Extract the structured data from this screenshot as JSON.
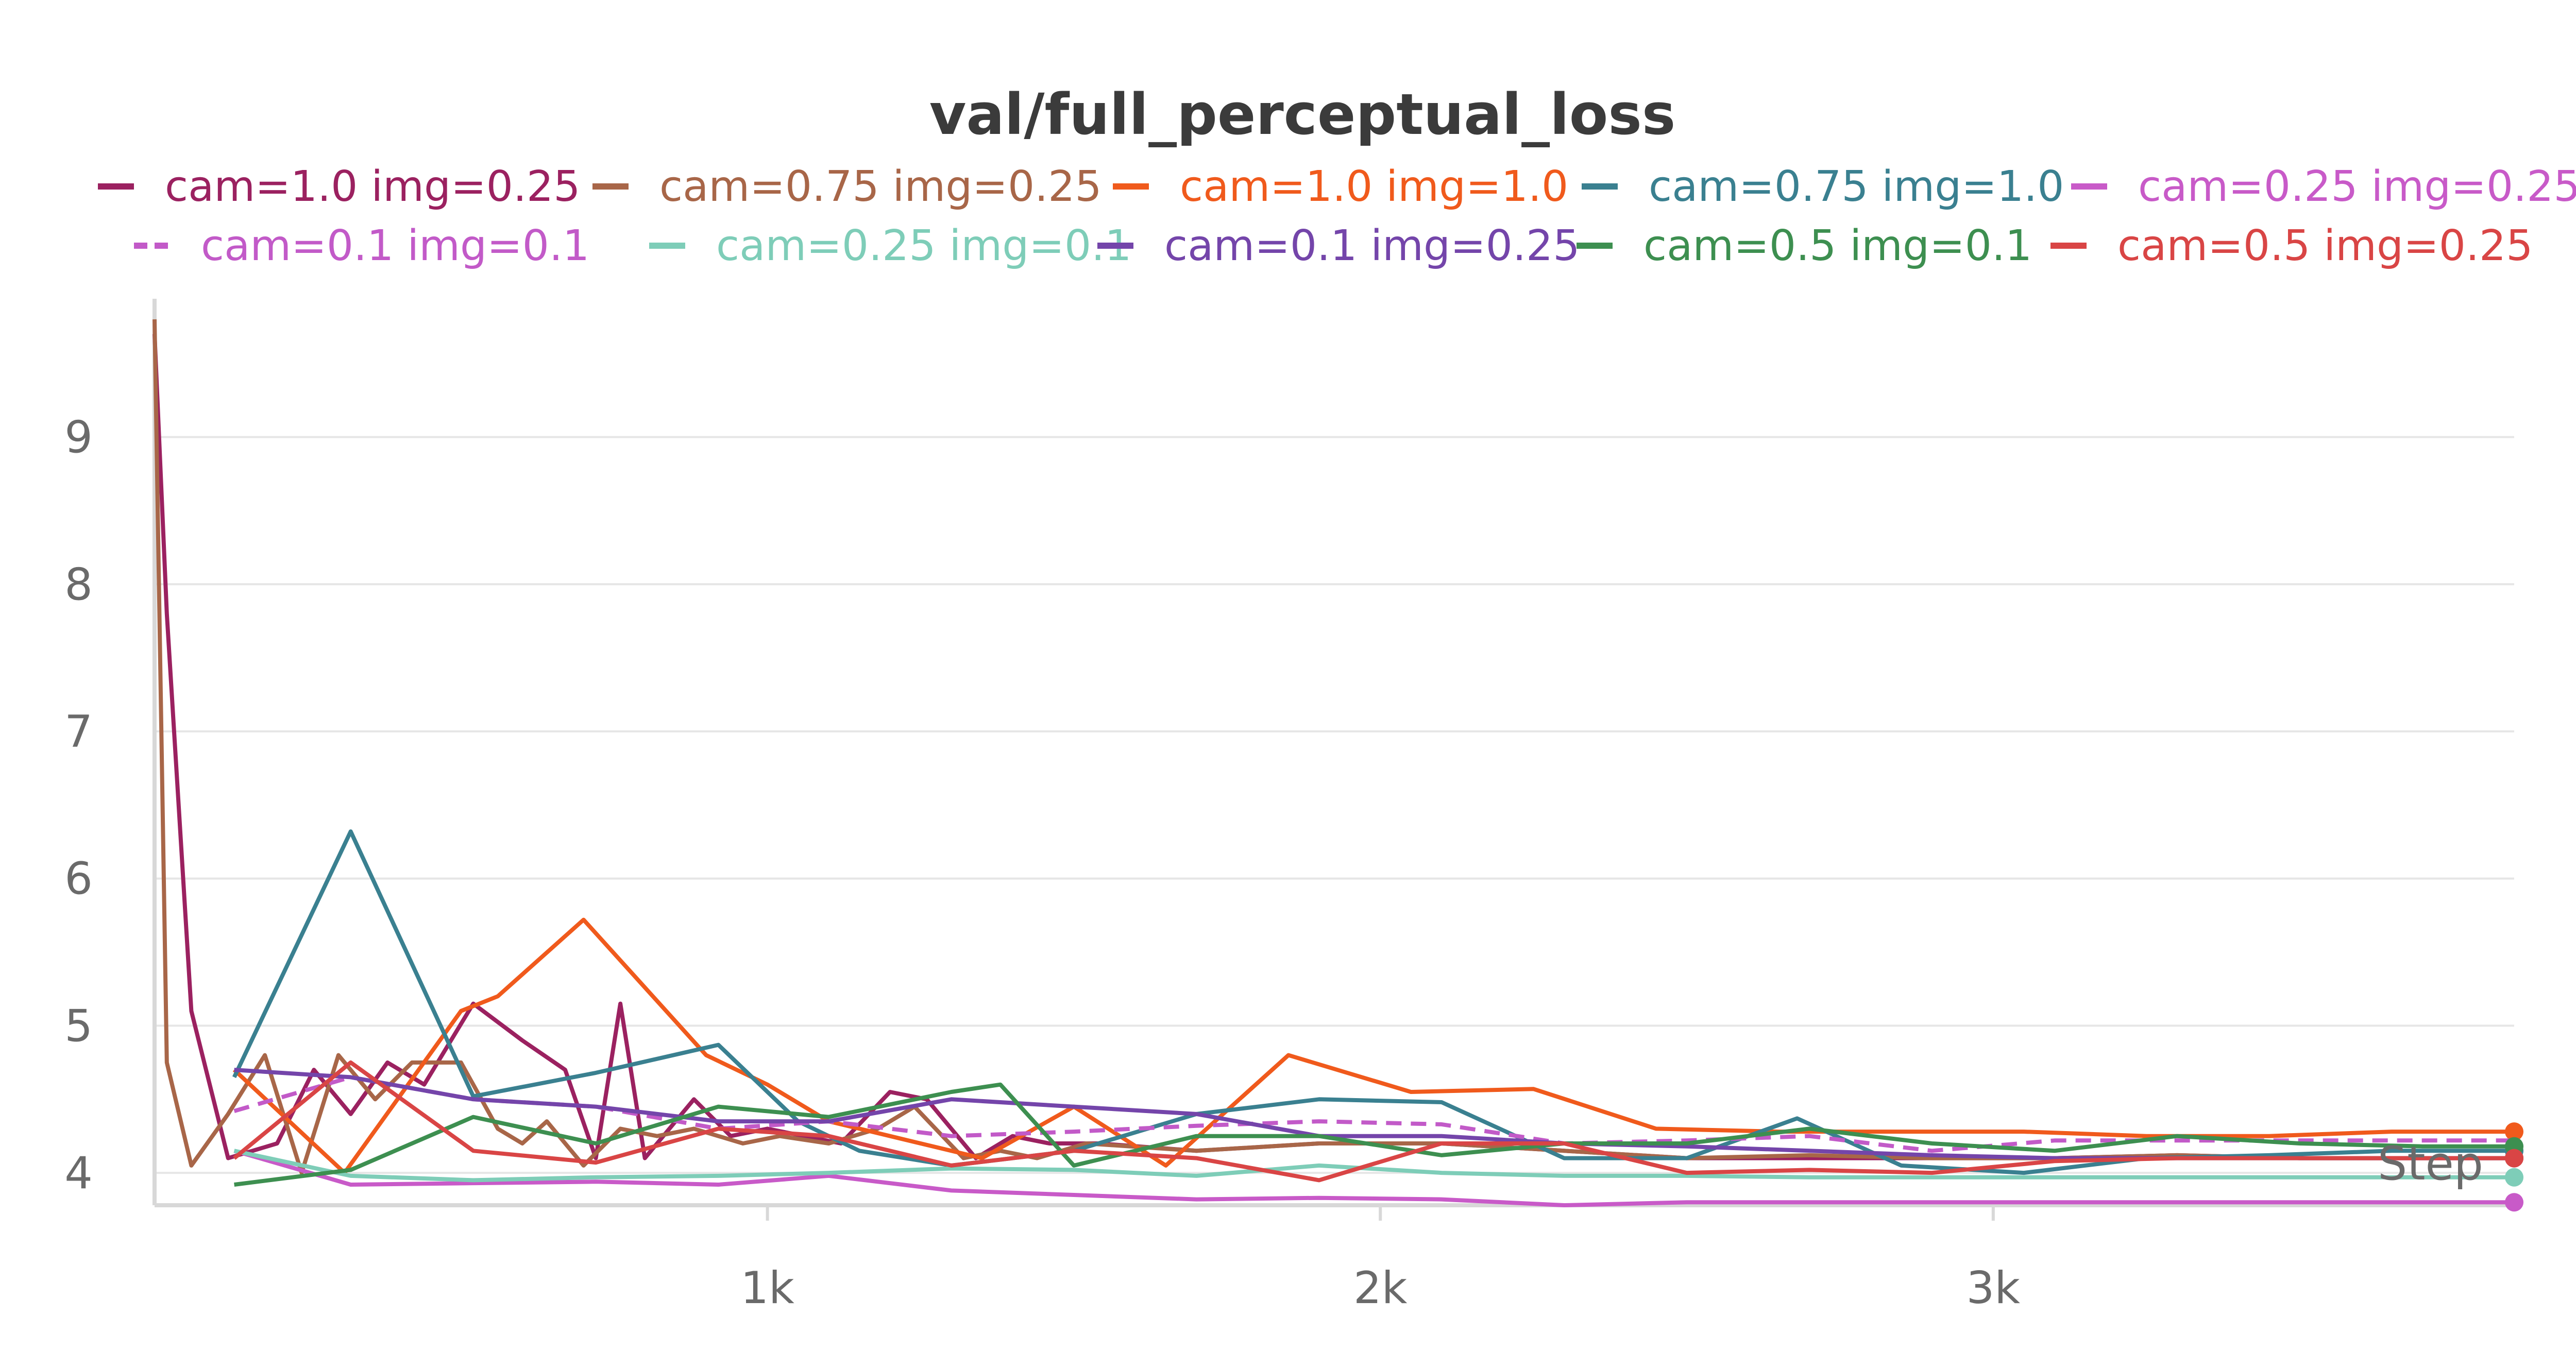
{
  "chart_data": {
    "type": "line",
    "title": "val/full_perceptual_loss",
    "xlabel": "Step",
    "ylabel": "",
    "xlim": [
      0,
      3850
    ],
    "ylim": [
      3.78,
      9.8
    ],
    "x_ticks": [
      1000,
      2000,
      3000
    ],
    "x_tick_labels": [
      "1k",
      "2k",
      "3k"
    ],
    "y_ticks": [
      4,
      5,
      6,
      7,
      8,
      9
    ],
    "y_tick_labels": [
      "4",
      "5",
      "6",
      "7",
      "8",
      "9"
    ],
    "grid": true,
    "legend_position": "top",
    "series": [
      {
        "name": "cam=1.0 img=0.25",
        "color": "#9b2160",
        "dash": false,
        "end_marker": true,
        "x": [
          0,
          20,
          60,
          120,
          200,
          260,
          320,
          380,
          440,
          520,
          600,
          670,
          720,
          760,
          800,
          880,
          940,
          1000,
          1060,
          1120,
          1200,
          1260,
          1340,
          1400,
          1460,
          1540,
          1700,
          1900,
          2100,
          2300,
          2500,
          2700,
          2900,
          3100,
          3300,
          3500,
          3700,
          3850
        ],
        "y": [
          9.7,
          7.8,
          5.1,
          4.1,
          4.2,
          4.7,
          4.4,
          4.75,
          4.6,
          5.15,
          4.9,
          4.7,
          4.1,
          5.15,
          4.1,
          4.5,
          4.25,
          4.3,
          4.25,
          4.2,
          4.55,
          4.5,
          4.1,
          4.25,
          4.2,
          4.2,
          4.15,
          4.2,
          4.2,
          4.15,
          4.1,
          4.1,
          4.1,
          4.1,
          4.12,
          4.1,
          4.1,
          4.1
        ]
      },
      {
        "name": "cam=0.75 img=0.25",
        "color": "#a86648",
        "dash": false,
        "end_marker": true,
        "x": [
          0,
          20,
          60,
          120,
          180,
          240,
          300,
          360,
          420,
          500,
          560,
          600,
          640,
          700,
          760,
          820,
          880,
          960,
          1020,
          1100,
          1180,
          1240,
          1320,
          1380,
          1440,
          1520,
          1700,
          1900,
          2100,
          2300,
          2500,
          2700,
          2900,
          3100,
          3300,
          3500,
          3700,
          3850
        ],
        "y": [
          9.8,
          4.75,
          4.05,
          4.4,
          4.8,
          4.0,
          4.8,
          4.5,
          4.75,
          4.75,
          4.3,
          4.2,
          4.35,
          4.05,
          4.3,
          4.25,
          4.3,
          4.2,
          4.25,
          4.2,
          4.3,
          4.45,
          4.1,
          4.15,
          4.1,
          4.2,
          4.15,
          4.2,
          4.2,
          4.15,
          4.1,
          4.12,
          4.1,
          4.1,
          4.12,
          4.1,
          4.1,
          4.1
        ]
      },
      {
        "name": "cam=1.0 img=1.0",
        "color": "#f05a1c",
        "dash": false,
        "end_marker": true,
        "x": [
          130,
          310,
          500,
          560,
          700,
          900,
          1000,
          1100,
          1200,
          1350,
          1500,
          1650,
          1850,
          2050,
          2250,
          2450,
          2650,
          2850,
          3050,
          3250,
          3450,
          3650,
          3850
        ],
        "y": [
          4.7,
          4.0,
          5.1,
          5.2,
          5.72,
          4.8,
          4.6,
          4.35,
          4.25,
          4.1,
          4.45,
          4.05,
          4.8,
          4.55,
          4.57,
          4.3,
          4.28,
          4.28,
          4.28,
          4.25,
          4.25,
          4.28,
          4.28
        ]
      },
      {
        "name": "cam=0.75 img=1.0",
        "color": "#3a8090",
        "dash": false,
        "end_marker": true,
        "x": [
          130,
          320,
          520,
          720,
          920,
          1050,
          1150,
          1300,
          1500,
          1700,
          1900,
          2100,
          2300,
          2500,
          2680,
          2850,
          3050,
          3250,
          3450,
          3650,
          3850
        ],
        "y": [
          4.65,
          6.32,
          4.52,
          4.68,
          4.87,
          4.35,
          4.15,
          4.05,
          4.15,
          4.4,
          4.5,
          4.48,
          4.1,
          4.1,
          4.37,
          4.05,
          4.0,
          4.1,
          4.12,
          4.15,
          4.15
        ]
      },
      {
        "name": "cam=0.25 img=0.25",
        "color": "#c85ac8",
        "dash": false,
        "end_marker": true,
        "x": [
          130,
          320,
          520,
          720,
          920,
          1100,
          1300,
          1500,
          1700,
          1900,
          2100,
          2300,
          2500,
          2700,
          2900,
          3100,
          3300,
          3500,
          3700,
          3850
        ],
        "y": [
          4.15,
          3.92,
          3.93,
          3.94,
          3.92,
          3.98,
          3.88,
          3.85,
          3.82,
          3.83,
          3.82,
          3.78,
          3.8,
          3.8,
          3.8,
          3.8,
          3.8,
          3.8,
          3.8,
          3.8
        ]
      },
      {
        "name": "cam=0.1 img=0.1",
        "color": "#c25ac8",
        "dash": true,
        "end_marker": false,
        "x": [
          130,
          320,
          520,
          720,
          920,
          1100,
          1300,
          1500,
          1700,
          1900,
          2100,
          2300,
          2500,
          2700,
          2900,
          3100,
          3300,
          3500,
          3700,
          3850
        ],
        "y": [
          4.42,
          4.65,
          4.5,
          4.45,
          4.3,
          4.35,
          4.25,
          4.28,
          4.32,
          4.35,
          4.33,
          4.2,
          4.22,
          4.25,
          4.15,
          4.22,
          4.22,
          4.22,
          4.22,
          4.22
        ]
      },
      {
        "name": "cam=0.25 img=0.1",
        "color": "#7ecdb8",
        "dash": false,
        "end_marker": true,
        "x": [
          130,
          320,
          520,
          720,
          920,
          1100,
          1300,
          1500,
          1700,
          1900,
          2100,
          2300,
          2500,
          2700,
          2900,
          3100,
          3300,
          3500,
          3700,
          3850
        ],
        "y": [
          4.15,
          3.98,
          3.95,
          3.97,
          3.98,
          4.0,
          4.03,
          4.02,
          3.98,
          4.05,
          4.0,
          3.98,
          3.98,
          3.97,
          3.97,
          3.97,
          3.97,
          3.97,
          3.97,
          3.97
        ]
      },
      {
        "name": "cam=0.1 img=0.25",
        "color": "#7445aa",
        "dash": false,
        "end_marker": false,
        "x": [
          130,
          320,
          520,
          720,
          920,
          1100,
          1300,
          1500,
          1700,
          1900,
          2100,
          2300,
          2500,
          2700,
          2900,
          3100,
          3300,
          3500,
          3700,
          3850
        ],
        "y": [
          4.7,
          4.65,
          4.5,
          4.45,
          4.35,
          4.35,
          4.5,
          4.45,
          4.4,
          4.25,
          4.25,
          4.2,
          4.18,
          4.15,
          4.12,
          4.1,
          4.1,
          4.1,
          4.1,
          4.1
        ]
      },
      {
        "name": "cam=0.5 img=0.1",
        "color": "#3d8f50",
        "dash": false,
        "end_marker": true,
        "x": [
          130,
          320,
          520,
          720,
          920,
          1100,
          1300,
          1380,
          1500,
          1700,
          1900,
          2100,
          2300,
          2500,
          2700,
          2900,
          3100,
          3300,
          3500,
          3700,
          3850
        ],
        "y": [
          3.92,
          4.02,
          4.38,
          4.2,
          4.45,
          4.38,
          4.55,
          4.6,
          4.05,
          4.25,
          4.25,
          4.12,
          4.2,
          4.2,
          4.3,
          4.2,
          4.15,
          4.25,
          4.2,
          4.18,
          4.18
        ]
      },
      {
        "name": "cam=0.5 img=0.25",
        "color": "#d94545",
        "dash": false,
        "end_marker": true,
        "x": [
          130,
          320,
          520,
          720,
          920,
          1100,
          1300,
          1500,
          1700,
          1900,
          2100,
          2300,
          2500,
          2700,
          2900,
          3100,
          3300,
          3500,
          3700,
          3850
        ],
        "y": [
          4.1,
          4.75,
          4.15,
          4.07,
          4.3,
          4.25,
          4.05,
          4.15,
          4.1,
          3.95,
          4.2,
          4.2,
          4.0,
          4.02,
          4.0,
          4.08,
          4.1,
          4.1,
          4.1,
          4.1
        ]
      }
    ]
  }
}
